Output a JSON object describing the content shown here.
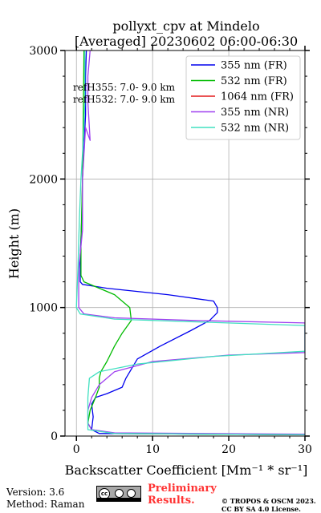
{
  "chart_data": {
    "type": "line",
    "title_line1": "pollyxt_cpv at Mindelo",
    "title_line2": "[Averaged] 20230602 06:00-06:30",
    "xlabel": "Backscatter Coefficient [Mm⁻¹ * sr⁻¹]",
    "ylabel": "Height (m)",
    "xlim": [
      -1.5,
      30
    ],
    "ylim": [
      0,
      3000
    ],
    "xticks": [
      0,
      10,
      20,
      30
    ],
    "yticks": [
      0,
      1000,
      2000,
      3000
    ],
    "grid": true,
    "legend_position": "top-right",
    "annotations": [
      "refH355:  7.0- 9.0 km",
      "refH532:  7.0- 9.0 km"
    ],
    "series": [
      {
        "name": "355 nm (FR)",
        "color": "#0000ee",
        "points": [
          [
            30,
            10
          ],
          [
            3,
            20
          ],
          [
            2,
            50
          ],
          [
            2.2,
            150
          ],
          [
            2,
            250
          ],
          [
            2.5,
            300
          ],
          [
            4,
            330
          ],
          [
            6,
            380
          ],
          [
            6.5,
            450
          ],
          [
            8,
            600
          ],
          [
            11,
            700
          ],
          [
            15,
            820
          ],
          [
            17.5,
            900
          ],
          [
            18.5,
            960
          ],
          [
            18.5,
            1000
          ],
          [
            18,
            1050
          ],
          [
            12,
            1100
          ],
          [
            4,
            1150
          ],
          [
            0.8,
            1180
          ],
          [
            0.5,
            1200
          ],
          [
            0.5,
            1400
          ],
          [
            0.7,
            1700
          ],
          [
            0.8,
            2000
          ],
          [
            1.2,
            2500
          ],
          [
            1.2,
            2800
          ],
          [
            1.3,
            3000
          ]
        ]
      },
      {
        "name": "532 nm (FR)",
        "color": "#00bb00",
        "points": [
          [
            30,
            10
          ],
          [
            5,
            20
          ],
          [
            2,
            50
          ],
          [
            1.5,
            100
          ],
          [
            1.8,
            200
          ],
          [
            2.5,
            300
          ],
          [
            3,
            380
          ],
          [
            3,
            450
          ],
          [
            3.2,
            500
          ],
          [
            4,
            580
          ],
          [
            5,
            700
          ],
          [
            6,
            800
          ],
          [
            7.2,
            900
          ],
          [
            7,
            1000
          ],
          [
            5,
            1100
          ],
          [
            3,
            1150
          ],
          [
            1,
            1200
          ],
          [
            0.6,
            1250
          ],
          [
            0.6,
            1500
          ],
          [
            0.8,
            2000
          ],
          [
            0.9,
            2500
          ],
          [
            1,
            3000
          ]
        ]
      },
      {
        "name": "1064 nm (FR)",
        "color": "#e31a1c",
        "points": []
      },
      {
        "name": "355 nm (NR)",
        "color": "#a040f0",
        "points": [
          [
            30,
            15
          ],
          [
            5,
            25
          ],
          [
            2,
            50
          ],
          [
            1.5,
            100
          ],
          [
            1.5,
            200
          ],
          [
            2,
            300
          ],
          [
            3,
            400
          ],
          [
            5,
            500
          ],
          [
            10,
            580
          ],
          [
            20,
            630
          ],
          [
            30,
            650
          ],
          [
            30,
            880
          ],
          [
            15,
            900
          ],
          [
            5,
            920
          ],
          [
            1,
            950
          ],
          [
            0.3,
            1000
          ],
          [
            0.3,
            1300
          ],
          [
            0.8,
            1600
          ],
          [
            0.8,
            2000
          ],
          [
            1.2,
            2400
          ],
          [
            1.8,
            2300
          ],
          [
            1.5,
            2600
          ],
          [
            1.5,
            2800
          ],
          [
            1.8,
            3000
          ]
        ]
      },
      {
        "name": "532 nm (NR)",
        "color": "#40e0c0",
        "points": [
          [
            30,
            10
          ],
          [
            5,
            20
          ],
          [
            1.5,
            50
          ],
          [
            1.5,
            150
          ],
          [
            1.5,
            300
          ],
          [
            1.7,
            450
          ],
          [
            3,
            500
          ],
          [
            8,
            560
          ],
          [
            18,
            620
          ],
          [
            30,
            660
          ],
          [
            30,
            860
          ],
          [
            15,
            890
          ],
          [
            5,
            910
          ],
          [
            0.5,
            950
          ],
          [
            0,
            1000
          ],
          [
            0.2,
            1300
          ],
          [
            0.4,
            1700
          ],
          [
            0.6,
            2000
          ],
          [
            0.9,
            2300
          ],
          [
            1.1,
            2600
          ],
          [
            1.1,
            3000
          ]
        ]
      }
    ]
  },
  "footer": {
    "version": "Version: 3.6",
    "method": "Method: Raman",
    "preliminary_line1": "Preliminary",
    "preliminary_line2": "Results.",
    "copyright_line1": "© TROPOS & OSCM 2023.",
    "copyright_line2": "CC BY SA 4.0 License."
  },
  "license_badge": {
    "cc_text": "cc",
    "icon": "cc-by-sa-icon"
  }
}
